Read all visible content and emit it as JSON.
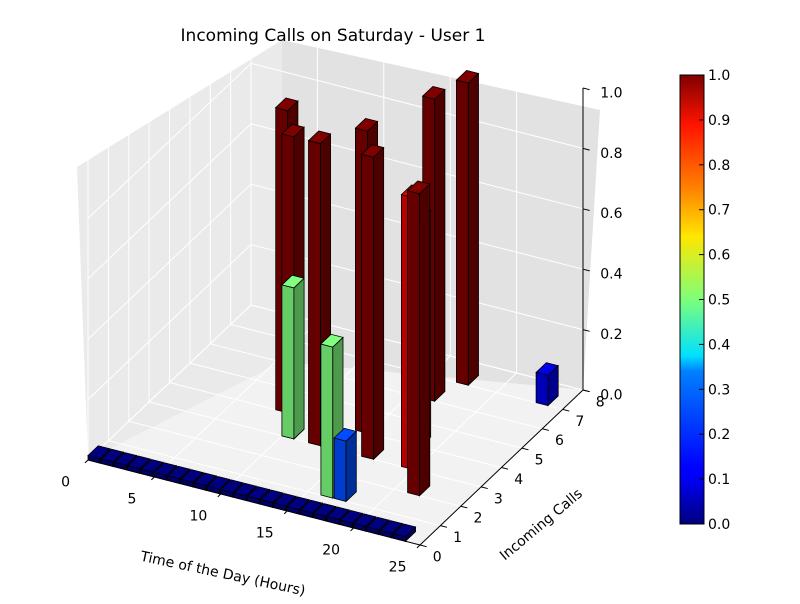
{
  "chart_data": {
    "type": "bar3d",
    "title": "Incoming Calls on Saturday - User 1",
    "xlabel": "Time of the Day (Hours)",
    "ylabel": "Incoming Calls",
    "zlabel": "",
    "xlim": [
      0,
      25
    ],
    "ylim": [
      0,
      8
    ],
    "zlim": [
      0,
      1.0
    ],
    "x_ticks": [
      "0",
      "5",
      "10",
      "15",
      "20",
      "25"
    ],
    "y_ticks": [
      "0",
      "1",
      "2",
      "3",
      "4",
      "5",
      "6",
      "7",
      "8"
    ],
    "z_ticks": [
      "0.0",
      "0.2",
      "0.4",
      "0.6",
      "0.8",
      "1.0"
    ],
    "colorbar": {
      "colormap": "jet",
      "range": [
        0,
        1
      ],
      "ticks": [
        "0.0",
        "0.1",
        "0.2",
        "0.3",
        "0.4",
        "0.5",
        "0.6",
        "0.7",
        "0.8",
        "0.9",
        "1.0"
      ]
    },
    "grid": true,
    "bars": [
      {
        "hour": 0,
        "calls": 0,
        "value": 0.0
      },
      {
        "hour": 1,
        "calls": 0,
        "value": 0.0
      },
      {
        "hour": 2,
        "calls": 0,
        "value": 0.0
      },
      {
        "hour": 3,
        "calls": 0,
        "value": 0.0
      },
      {
        "hour": 4,
        "calls": 0,
        "value": 0.0
      },
      {
        "hour": 5,
        "calls": 0,
        "value": 0.0
      },
      {
        "hour": 6,
        "calls": 0,
        "value": 0.0
      },
      {
        "hour": 7,
        "calls": 0,
        "value": 0.0
      },
      {
        "hour": 8,
        "calls": 0,
        "value": 0.0
      },
      {
        "hour": 9,
        "calls": 0,
        "value": 0.0
      },
      {
        "hour": 10,
        "calls": 0,
        "value": 0.0
      },
      {
        "hour": 11,
        "calls": 0,
        "value": 0.0
      },
      {
        "hour": 12,
        "calls": 0,
        "value": 0.0
      },
      {
        "hour": 13,
        "calls": 0,
        "value": 0.0
      },
      {
        "hour": 14,
        "calls": 0,
        "value": 0.0
      },
      {
        "hour": 15,
        "calls": 0,
        "value": 0.0
      },
      {
        "hour": 16,
        "calls": 0,
        "value": 0.0
      },
      {
        "hour": 17,
        "calls": 0,
        "value": 0.0
      },
      {
        "hour": 18,
        "calls": 0,
        "value": 0.0
      },
      {
        "hour": 19,
        "calls": 0,
        "value": 0.0
      },
      {
        "hour": 20,
        "calls": 0,
        "value": 0.0
      },
      {
        "hour": 21,
        "calls": 0,
        "value": 0.0
      },
      {
        "hour": 22,
        "calls": 0,
        "value": 0.0
      },
      {
        "hour": 23,
        "calls": 0,
        "value": 0.0
      },
      {
        "hour": 17,
        "calls": 1,
        "value": 0.2
      },
      {
        "hour": 16,
        "calls": 1,
        "value": 0.5
      },
      {
        "hour": 8,
        "calls": 4,
        "value": 1.0
      },
      {
        "hour": 10,
        "calls": 3,
        "value": 1.0
      },
      {
        "hour": 12,
        "calls": 3,
        "value": 1.0
      },
      {
        "hour": 14,
        "calls": 4,
        "value": 1.0
      },
      {
        "hour": 16,
        "calls": 6,
        "value": 1.0
      },
      {
        "hour": 17,
        "calls": 7,
        "value": 1.0
      },
      {
        "hour": 16,
        "calls": 3,
        "value": 1.0
      },
      {
        "hour": 18,
        "calls": 4,
        "value": 0.75
      },
      {
        "hour": 19,
        "calls": 3,
        "value": 0.9
      },
      {
        "hour": 21,
        "calls": 2,
        "value": 1.0
      },
      {
        "hour": 10,
        "calls": 3,
        "value": 0.5
      },
      {
        "hour": 23,
        "calls": 7,
        "value": 0.1
      }
    ]
  }
}
